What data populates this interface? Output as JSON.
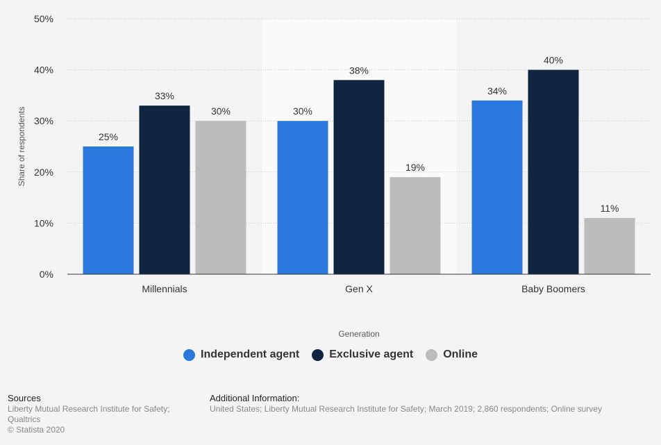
{
  "chart_data": {
    "type": "bar",
    "categories": [
      "Millennials",
      "Gen X",
      "Baby Boomers"
    ],
    "series": [
      {
        "name": "Independent agent",
        "color": "#2a77dd",
        "values": [
          25,
          30,
          34
        ]
      },
      {
        "name": "Exclusive agent",
        "color": "#10253f",
        "values": [
          33,
          38,
          40
        ]
      },
      {
        "name": "Online",
        "color": "#bcbcbc",
        "values": [
          30,
          19,
          11
        ]
      }
    ],
    "value_suffix": "%",
    "xlabel": "Generation",
    "ylabel": "Share of respondents",
    "ylim": [
      0,
      50
    ],
    "yticks": [
      "0%",
      "10%",
      "20%",
      "30%",
      "40%",
      "50%"
    ],
    "grid": true,
    "highlighted_category": "Gen X",
    "legend_position": "bottom"
  },
  "footer": {
    "sources_title": "Sources",
    "sources_lines": [
      "Liberty Mutual Research Institute for Safety;",
      "Qualtrics"
    ],
    "copyright": "© Statista 2020",
    "additional_title": "Additional Information:",
    "additional_text": "United States; Liberty Mutual Research Institute for Safety; March 2019; 2,860 respondents; Online survey"
  }
}
